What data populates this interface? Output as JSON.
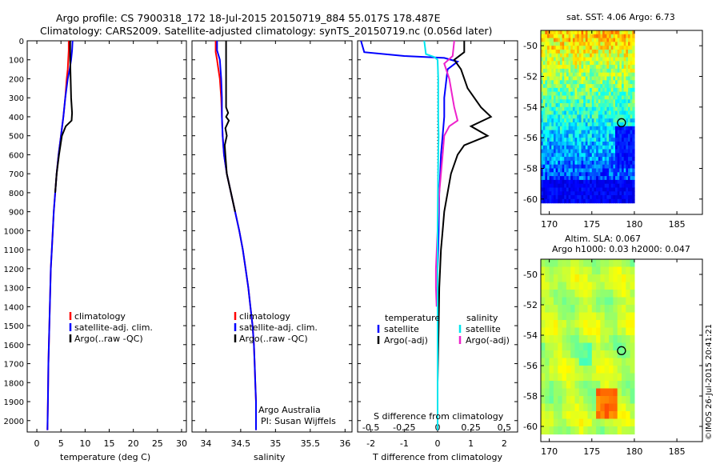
{
  "header": {
    "line1": "Argo profile: CS 7900318_172 18-Jul-2015 20150719_884 55.017S 178.487E",
    "line2": "Climatology: CARS2009. Satellite-adjusted climatology: synTS_20150719.nc (0.056d later)"
  },
  "colors": {
    "climatology": "#ff0000",
    "satellite": "#0000ff",
    "argo": "#000000",
    "sal_satellite": "#00e5ee",
    "sal_argo": "#ee22cc"
  },
  "depth_ticks": [
    0,
    100,
    200,
    300,
    400,
    500,
    600,
    700,
    800,
    900,
    1000,
    1100,
    1200,
    1300,
    1400,
    1500,
    1600,
    1700,
    1800,
    1900,
    2000
  ],
  "chart_data": [
    {
      "type": "line",
      "xlabel": "temperature (deg C)",
      "xlim": [
        -2,
        31
      ],
      "ylim": [
        0,
        2060
      ],
      "xticks": [
        "0",
        "5",
        "10",
        "15",
        "20",
        "25",
        "30"
      ],
      "xtick_values": [
        0,
        5,
        10,
        15,
        20,
        25,
        30
      ],
      "legend": [
        "climatology",
        "satellite-adj. clim.",
        "Argo(..raw -QC)"
      ],
      "series": [
        {
          "name": "climatology",
          "color": "#ff0000",
          "x": [
            6.6,
            6.6,
            6.5,
            6.4,
            6.2,
            5.9,
            5.5,
            5.0,
            4.5,
            4.1,
            3.8,
            3.5,
            3.3,
            3.1,
            2.9,
            2.8,
            2.7,
            2.6,
            2.5,
            2.4,
            2.3,
            2.2
          ],
          "y": [
            0,
            50,
            100,
            150,
            200,
            300,
            400,
            500,
            600,
            700,
            800,
            900,
            1000,
            1100,
            1200,
            1300,
            1400,
            1500,
            1600,
            1700,
            1900,
            2050
          ]
        },
        {
          "name": "satellite-adj. clim.",
          "color": "#0000ff",
          "x": [
            7.4,
            7.3,
            7.1,
            6.8,
            6.4,
            5.9,
            5.5,
            5.0,
            4.5,
            4.1,
            3.8,
            3.5,
            3.3,
            3.1,
            2.9,
            2.8,
            2.7,
            2.6,
            2.5,
            2.4,
            2.3,
            2.2
          ],
          "y": [
            0,
            50,
            100,
            150,
            200,
            300,
            400,
            500,
            600,
            700,
            800,
            900,
            1000,
            1100,
            1200,
            1300,
            1400,
            1500,
            1600,
            1700,
            1900,
            2050
          ]
        },
        {
          "name": "Argo(..raw -QC)",
          "color": "#000000",
          "x": [
            6.9,
            6.9,
            7.0,
            7.1,
            7.3,
            7.2,
            6.0,
            5.2,
            4.6,
            4.1,
            3.8
          ],
          "y": [
            0,
            100,
            200,
            300,
            380,
            420,
            450,
            500,
            600,
            700,
            800
          ]
        }
      ]
    },
    {
      "type": "line",
      "xlabel": "salinity",
      "xlim": [
        33.8,
        36.1
      ],
      "ylim": [
        0,
        2060
      ],
      "xticks": [
        "34",
        "34.5",
        "35",
        "35.5",
        "36"
      ],
      "xtick_values": [
        34,
        34.5,
        35,
        35.5,
        36
      ],
      "legend": [
        "climatology",
        "satellite-adj. clim.",
        "Argo(..raw -QC)"
      ],
      "annotations": [
        "Argo Australia",
        "PI: Susan Wijffels"
      ],
      "series": [
        {
          "name": "climatology",
          "color": "#ff0000",
          "x": [
            34.14,
            34.14,
            34.16,
            34.18,
            34.2,
            34.22,
            34.23,
            34.24,
            34.26,
            34.3,
            34.36,
            34.42,
            34.48,
            34.53,
            34.57,
            34.61,
            34.64,
            34.67,
            34.69,
            34.7,
            34.71,
            34.72,
            34.72
          ],
          "y": [
            0,
            60,
            100,
            150,
            200,
            300,
            400,
            500,
            600,
            700,
            800,
            900,
            1000,
            1100,
            1200,
            1300,
            1400,
            1500,
            1600,
            1700,
            1800,
            1900,
            2050
          ]
        },
        {
          "name": "satellite-adj. clim.",
          "color": "#0000ff",
          "x": [
            34.16,
            34.16,
            34.2,
            34.22,
            34.23,
            34.23,
            34.24,
            34.26,
            34.3,
            34.36,
            34.42,
            34.48,
            34.53,
            34.57,
            34.61,
            34.64,
            34.67,
            34.69,
            34.7,
            34.71,
            34.72,
            34.72
          ],
          "y": [
            0,
            50,
            100,
            200,
            300,
            400,
            500,
            600,
            700,
            800,
            900,
            1000,
            1100,
            1200,
            1300,
            1400,
            1500,
            1600,
            1700,
            1800,
            1900,
            2050
          ]
        },
        {
          "name": "Argo(..raw -QC)",
          "color": "#000000",
          "x": [
            34.29,
            34.29,
            34.29,
            34.29,
            34.32,
            34.29,
            34.33,
            34.28,
            34.3,
            34.27,
            34.28,
            34.3,
            34.36,
            34.42
          ],
          "y": [
            0,
            100,
            200,
            350,
            380,
            400,
            420,
            460,
            500,
            550,
            600,
            700,
            800,
            900
          ]
        }
      ]
    },
    {
      "type": "line",
      "xlabel": "T difference from climatology",
      "xlabel2": "S difference from climatology",
      "xlim": [
        -2.4,
        2.4
      ],
      "ylim": [
        0,
        2060
      ],
      "xticks": [
        "-2",
        "-1",
        "0",
        "1",
        "2"
      ],
      "xtick_values": [
        -2,
        -1,
        0,
        1,
        2
      ],
      "xticks2": [
        "-0.5",
        "-0.25",
        "0",
        "0.25",
        "0.5"
      ],
      "xtick2_values": [
        -0.5,
        -0.25,
        0,
        0.25,
        0.5
      ],
      "legend_headers": [
        "temperature",
        "salinity"
      ],
      "legend": [
        "satellite",
        "Argo(-adj)",
        "satellite",
        "Argo(-adj)"
      ],
      "series": [
        {
          "name": "satellite",
          "color": "#0000ff",
          "x": [
            -2.3,
            -2.2,
            -1.0,
            0.2,
            0.6,
            0.3,
            0.2,
            0.2,
            0.15,
            0.1,
            0.08,
            0.05,
            0.04,
            0.03,
            0.02,
            0.0,
            0.0,
            0.0,
            0.0
          ],
          "y": [
            0,
            60,
            80,
            90,
            110,
            150,
            300,
            400,
            500,
            600,
            700,
            800,
            900,
            1000,
            1100,
            1200,
            1500,
            1800,
            2050
          ]
        },
        {
          "name": "Argo(-adj)",
          "color": "#000000",
          "x": [
            0.8,
            0.8,
            0.5,
            0.7,
            0.9,
            1.3,
            1.6,
            1.0,
            1.5,
            0.8,
            0.6,
            0.4,
            0.3,
            0.2,
            0.15,
            0.1,
            0.05,
            0.03,
            0.0
          ],
          "y": [
            0,
            60,
            100,
            150,
            250,
            350,
            400,
            450,
            500,
            550,
            600,
            700,
            800,
            900,
            1000,
            1100,
            1300,
            1500,
            1800
          ]
        },
        {
          "name": "satellite",
          "color": "#00e5ee",
          "x": [
            -0.4,
            -0.35,
            -0.1,
            0.0,
            0.02,
            0.02,
            0.03,
            0.02,
            0.01,
            0.0,
            0.0,
            0.0,
            0.0
          ],
          "y": [
            0,
            70,
            85,
            100,
            200,
            400,
            500,
            600,
            800,
            1000,
            1300,
            1600,
            2050
          ]
        },
        {
          "name": "Argo(-adj)",
          "color": "#ee22cc",
          "x": [
            0.5,
            0.45,
            0.2,
            0.35,
            0.5,
            0.6,
            0.35,
            0.2,
            0.15,
            0.1,
            0.05,
            0.0,
            -0.05,
            -0.05,
            -0.03
          ],
          "y": [
            0,
            80,
            120,
            200,
            350,
            420,
            450,
            500,
            600,
            700,
            800,
            1000,
            1200,
            1300,
            1400
          ]
        }
      ]
    },
    {
      "type": "heatmap",
      "title": "sat. SST: 4.06  Argo: 6.73",
      "xlim": [
        169,
        188
      ],
      "ylim": [
        -61,
        -49
      ],
      "xticks": [
        "170",
        "175",
        "180",
        "185"
      ],
      "xtick_values": [
        170,
        175,
        180,
        185
      ],
      "yticks": [
        "-50",
        "-52",
        "-54",
        "-56",
        "-58",
        "-60"
      ],
      "ytick_values": [
        -50,
        -52,
        -54,
        -56,
        -58,
        -60
      ],
      "data_extent": {
        "lon": [
          169,
          180
        ],
        "lat": [
          -60.2,
          -49.0
        ]
      },
      "marker": {
        "lon": 178.487,
        "lat": -55.017
      }
    },
    {
      "type": "heatmap",
      "title": "Altim. SLA: 0.067",
      "subtitle": "Argo h1000: 0.03  h2000: 0.047",
      "xlim": [
        169,
        188
      ],
      "ylim": [
        -61,
        -49
      ],
      "xticks": [
        "170",
        "175",
        "180",
        "185"
      ],
      "xtick_values": [
        170,
        175,
        180,
        185
      ],
      "yticks": [
        "-50",
        "-52",
        "-54",
        "-56",
        "-58",
        "-60"
      ],
      "ytick_values": [
        -50,
        -52,
        -54,
        -56,
        -58,
        -60
      ],
      "data_extent": {
        "lon": [
          169,
          180
        ],
        "lat": [
          -60.2,
          -49.0
        ]
      },
      "marker": {
        "lon": 178.487,
        "lat": -55.017
      }
    }
  ],
  "stamp": "©IMOS 26-Jul-2015 20:41:21"
}
